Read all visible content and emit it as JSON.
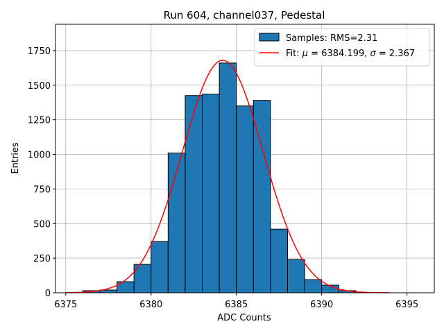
{
  "chart_data": {
    "type": "bar",
    "title": "Run 604, channel037, Pedestal",
    "xlabel": "ADC Counts",
    "ylabel": "Entries",
    "xlim": [
      6374.4,
      6396.6
    ],
    "ylim": [
      0,
      1940
    ],
    "grid": true,
    "legend_position": "top-right",
    "bar_color": "#1f77b4",
    "fit_color": "#ff0000",
    "x_ticks": [
      6375,
      6380,
      6385,
      6390,
      6395
    ],
    "y_ticks": [
      0,
      250,
      500,
      750,
      1000,
      1250,
      1500,
      1750
    ],
    "bins": [
      {
        "left": 6376,
        "right": 6377,
        "count": 15
      },
      {
        "left": 6377,
        "right": 6378,
        "count": 20
      },
      {
        "left": 6378,
        "right": 6379,
        "count": 80
      },
      {
        "left": 6379,
        "right": 6380,
        "count": 205
      },
      {
        "left": 6380,
        "right": 6381,
        "count": 370
      },
      {
        "left": 6381,
        "right": 6382,
        "count": 1010
      },
      {
        "left": 6382,
        "right": 6383,
        "count": 1425
      },
      {
        "left": 6383,
        "right": 6384,
        "count": 1435
      },
      {
        "left": 6384,
        "right": 6385,
        "count": 1660
      },
      {
        "left": 6385,
        "right": 6386,
        "count": 1350
      },
      {
        "left": 6386,
        "right": 6387,
        "count": 1390
      },
      {
        "left": 6387,
        "right": 6388,
        "count": 460
      },
      {
        "left": 6388,
        "right": 6389,
        "count": 240
      },
      {
        "left": 6389,
        "right": 6390,
        "count": 95
      },
      {
        "left": 6390,
        "right": 6391,
        "count": 55
      },
      {
        "left": 6391,
        "right": 6392,
        "count": 15
      }
    ],
    "fit": {
      "mu": 6384.199,
      "sigma": 2.367,
      "amplitude": 1680,
      "x_range": [
        6375,
        6394
      ]
    },
    "legend": [
      {
        "type": "bar",
        "label": "Samples: RMS=2.31"
      },
      {
        "type": "line",
        "label_prefix": "Fit: ",
        "label_mu_symbol": "μ",
        "label_mu_text": " = 6384.199, ",
        "label_sigma_symbol": "σ",
        "label_sigma_text": " = 2.367"
      }
    ]
  }
}
